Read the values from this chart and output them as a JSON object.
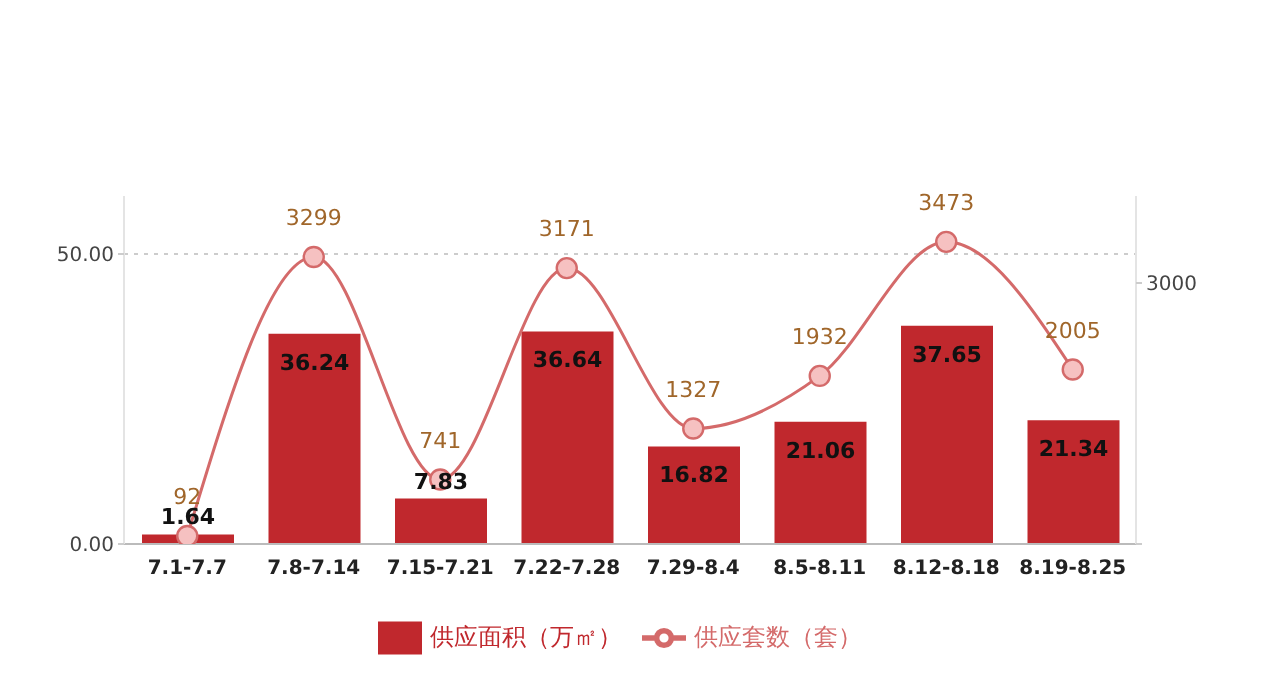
{
  "chart_data": {
    "type": "bar",
    "categories": [
      "7.1-7.7",
      "7.8-7.14",
      "7.15-7.21",
      "7.22-7.28",
      "7.29-8.4",
      "8.5-8.11",
      "8.12-8.18",
      "8.19-8.25"
    ],
    "series": [
      {
        "name": "供应面积（万㎡）",
        "color": "#c0282d",
        "values": [
          1.64,
          36.24,
          7.83,
          36.64,
          16.82,
          21.06,
          37.65,
          21.34
        ]
      },
      {
        "name": "供应套数（套）",
        "type": "line",
        "axis": "y2",
        "color": "#d46a6a",
        "values": [
          92,
          3299,
          741,
          3171,
          1327,
          1932,
          3473,
          2005
        ]
      }
    ],
    "ylim": [
      0,
      60
    ],
    "yticks": [
      {
        "value": 0,
        "label": "0.00"
      },
      {
        "value": 50,
        "label": "50.00"
      }
    ],
    "y2lim": [
      0,
      4000
    ],
    "y2ticks": [
      0,
      3000
    ],
    "grid": "y",
    "legend": "bottom",
    "marker": "circle",
    "line_style": "solid",
    "data_labels": true
  }
}
